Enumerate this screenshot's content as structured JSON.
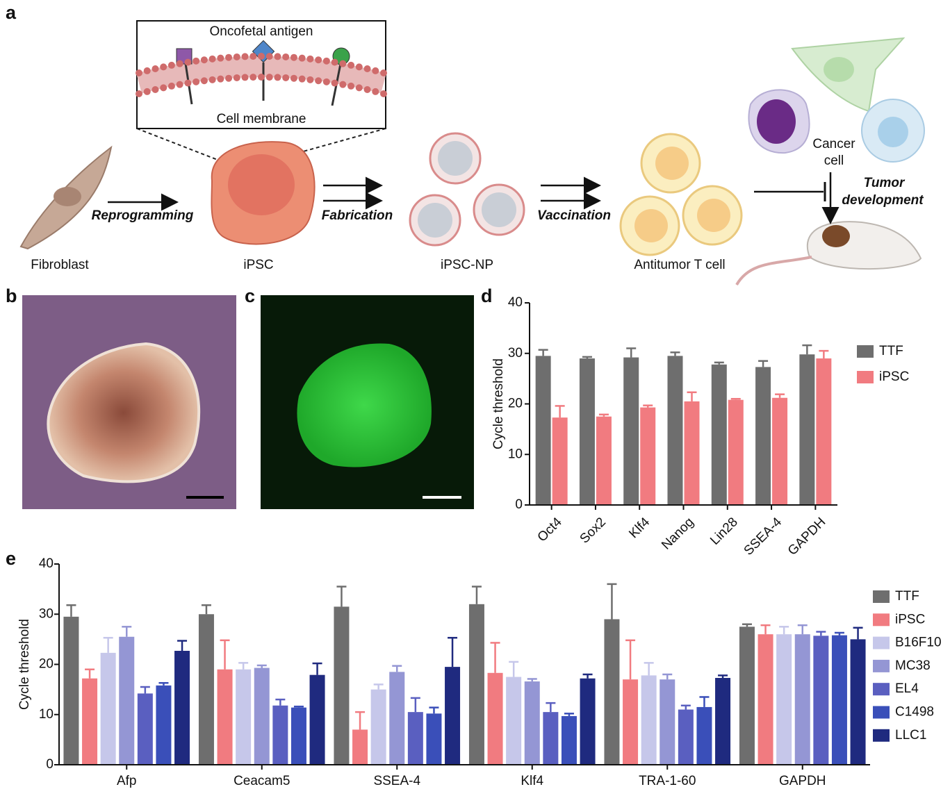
{
  "panel_labels": [
    "a",
    "b",
    "c",
    "d",
    "e"
  ],
  "diagram": {
    "inset_title": "Oncofetal antigen",
    "inset_caption": "Cell membrane",
    "steps": [
      "Reprogramming",
      "Fabrication",
      "Vaccination"
    ],
    "stages": [
      "Fibroblast",
      "iPSC",
      "iPSC-NP",
      "Antitumor T cell"
    ],
    "cancer_label": [
      "Cancer",
      "cell"
    ],
    "outcome_label": [
      "Tumor",
      "development"
    ]
  },
  "chart_data": [
    {
      "type": "bar",
      "y_label": "Cycle threshold",
      "categories": [
        "Oct4",
        "Sox2",
        "Klf4",
        "Nanog",
        "Lin28",
        "SSEA-4",
        "GAPDH"
      ],
      "series": [
        {
          "name": "TTF",
          "color": "#6e6e6e",
          "values": [
            29.5,
            29,
            29.2,
            29.5,
            27.8,
            27.3,
            29.8
          ],
          "errors": [
            1.2,
            0.3,
            1.8,
            0.7,
            0.4,
            1.2,
            1.8
          ]
        },
        {
          "name": "iPSC",
          "color": "#f17b80",
          "values": [
            17.3,
            17.5,
            19.3,
            20.5,
            20.8,
            21.2,
            29
          ],
          "errors": [
            2.3,
            0.4,
            0.4,
            1.8,
            0.2,
            0.7,
            1.5
          ]
        }
      ],
      "ylim": [
        0,
        40
      ],
      "yticks": [
        0,
        10,
        20,
        30,
        40
      ],
      "legend": "right"
    },
    {
      "type": "bar",
      "y_label": "Cycle threshold",
      "categories": [
        "Afp",
        "Ceacam5",
        "SSEA-4",
        "Klf4",
        "TRA-1-60",
        "GAPDH"
      ],
      "series": [
        {
          "name": "TTF",
          "color": "#6e6e6e",
          "values": [
            29.5,
            30,
            31.5,
            32,
            29,
            27.5
          ],
          "errors": [
            2.3,
            1.8,
            4.0,
            3.5,
            7.0,
            0.5
          ]
        },
        {
          "name": "iPSC",
          "color": "#f17b80",
          "values": [
            17.2,
            19,
            7,
            18.3,
            17,
            26
          ],
          "errors": [
            1.8,
            5.8,
            3.5,
            6.0,
            7.8,
            1.8
          ]
        },
        {
          "name": "B16F10",
          "color": "#c6c7ea",
          "values": [
            22.3,
            19,
            15,
            17.5,
            17.8,
            26
          ],
          "errors": [
            3.0,
            1.3,
            1.0,
            3.0,
            2.5,
            1.5
          ]
        },
        {
          "name": "MC38",
          "color": "#9496d4",
          "values": [
            25.5,
            19.3,
            18.5,
            16.6,
            17,
            26
          ],
          "errors": [
            2.0,
            0.5,
            1.2,
            0.5,
            1.0,
            1.8
          ]
        },
        {
          "name": "EL4",
          "color": "#5a5fc0",
          "values": [
            14.2,
            11.8,
            10.5,
            10.5,
            11,
            25.7
          ],
          "errors": [
            1.3,
            1.2,
            2.8,
            1.8,
            0.8,
            0.8
          ]
        },
        {
          "name": "C1498",
          "color": "#3a4fb9",
          "values": [
            15.8,
            11.4,
            10.2,
            9.7,
            11.5,
            25.8
          ],
          "errors": [
            0.5,
            0.2,
            1.2,
            0.5,
            2.0,
            0.5
          ]
        },
        {
          "name": "LLC1",
          "color": "#1f2a7f",
          "values": [
            22.7,
            17.9,
            19.5,
            17.2,
            17.3,
            25
          ],
          "errors": [
            2.0,
            2.3,
            5.8,
            0.8,
            0.5,
            2.3
          ]
        }
      ],
      "ylim": [
        0,
        40
      ],
      "yticks": [
        0,
        10,
        20,
        30,
        40
      ],
      "legend": "right"
    }
  ]
}
